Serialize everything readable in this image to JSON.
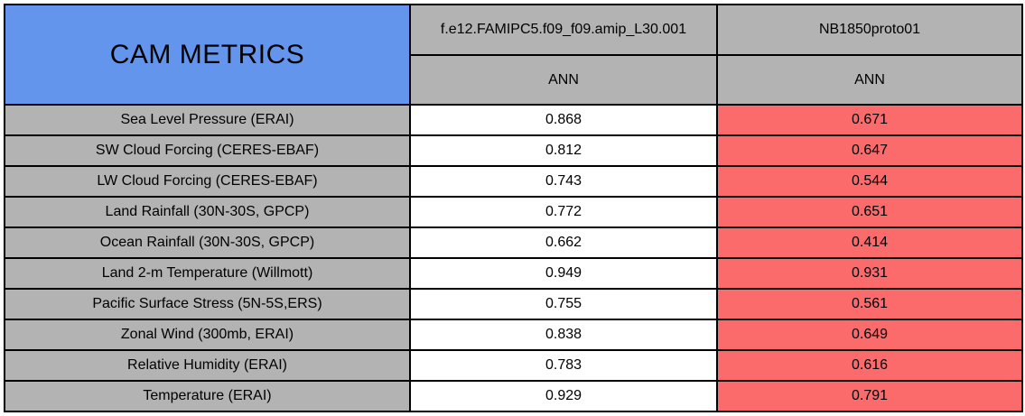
{
  "chart_data": {
    "type": "table",
    "title": "CAM METRICS",
    "columns": [
      "f.e12.FAMIPC5.f09_f09.amip_L30.001",
      "NB1850proto01"
    ],
    "subcolumns": [
      "ANN",
      "ANN"
    ],
    "categories": [
      "Sea Level Pressure (ERAI)",
      "SW Cloud Forcing (CERES-EBAF)",
      "LW Cloud Forcing (CERES-EBAF)",
      "Land Rainfall (30N-30S, GPCP)",
      "Ocean Rainfall (30N-30S, GPCP)",
      "Land 2-m Temperature (Willmott)",
      "Pacific Surface Stress (5N-5S,ERS)",
      "Zonal Wind (300mb, ERAI)",
      "Relative Humidity (ERAI)",
      "Temperature (ERAI)"
    ],
    "series": [
      {
        "name": "f.e12.FAMIPC5.f09_f09.amip_L30.001 ANN",
        "values": [
          0.868,
          0.812,
          0.743,
          0.772,
          0.662,
          0.949,
          0.755,
          0.838,
          0.783,
          0.929
        ]
      },
      {
        "name": "NB1850proto01 ANN",
        "values": [
          0.671,
          0.647,
          0.544,
          0.651,
          0.414,
          0.931,
          0.561,
          0.649,
          0.616,
          0.791
        ]
      }
    ],
    "notes": "Second series cells highlighted red indicating lower scores"
  },
  "table": {
    "title": "CAM METRICS",
    "columns": [
      {
        "run": "f.e12.FAMIPC5.f09_f09.amip_L30.001",
        "season": "ANN"
      },
      {
        "run": "NB1850proto01",
        "season": "ANN"
      }
    ],
    "rows": [
      {
        "metric": "Sea Level Pressure (ERAI)",
        "values": [
          "0.868",
          "0.671"
        ]
      },
      {
        "metric": "SW Cloud Forcing (CERES-EBAF)",
        "values": [
          "0.812",
          "0.647"
        ]
      },
      {
        "metric": "LW Cloud Forcing (CERES-EBAF)",
        "values": [
          "0.743",
          "0.544"
        ]
      },
      {
        "metric": "Land Rainfall (30N-30S, GPCP)",
        "values": [
          "0.772",
          "0.651"
        ]
      },
      {
        "metric": "Ocean Rainfall (30N-30S, GPCP)",
        "values": [
          "0.662",
          "0.414"
        ]
      },
      {
        "metric": "Land 2-m Temperature (Willmott)",
        "values": [
          "0.949",
          "0.931"
        ]
      },
      {
        "metric": "Pacific Surface Stress (5N-5S,ERS)",
        "values": [
          "0.755",
          "0.561"
        ]
      },
      {
        "metric": "Zonal Wind (300mb, ERAI)",
        "values": [
          "0.838",
          "0.649"
        ]
      },
      {
        "metric": "Relative Humidity (ERAI)",
        "values": [
          "0.783",
          "0.616"
        ]
      },
      {
        "metric": "Temperature (ERAI)",
        "values": [
          "0.929",
          "0.791"
        ]
      }
    ]
  },
  "colors": {
    "header_blue": "#6495ED",
    "header_gray": "#B3B3B3",
    "cell_white": "#FFFFFF",
    "highlight_red": "#FB6B6B",
    "border_black": "#000000"
  }
}
